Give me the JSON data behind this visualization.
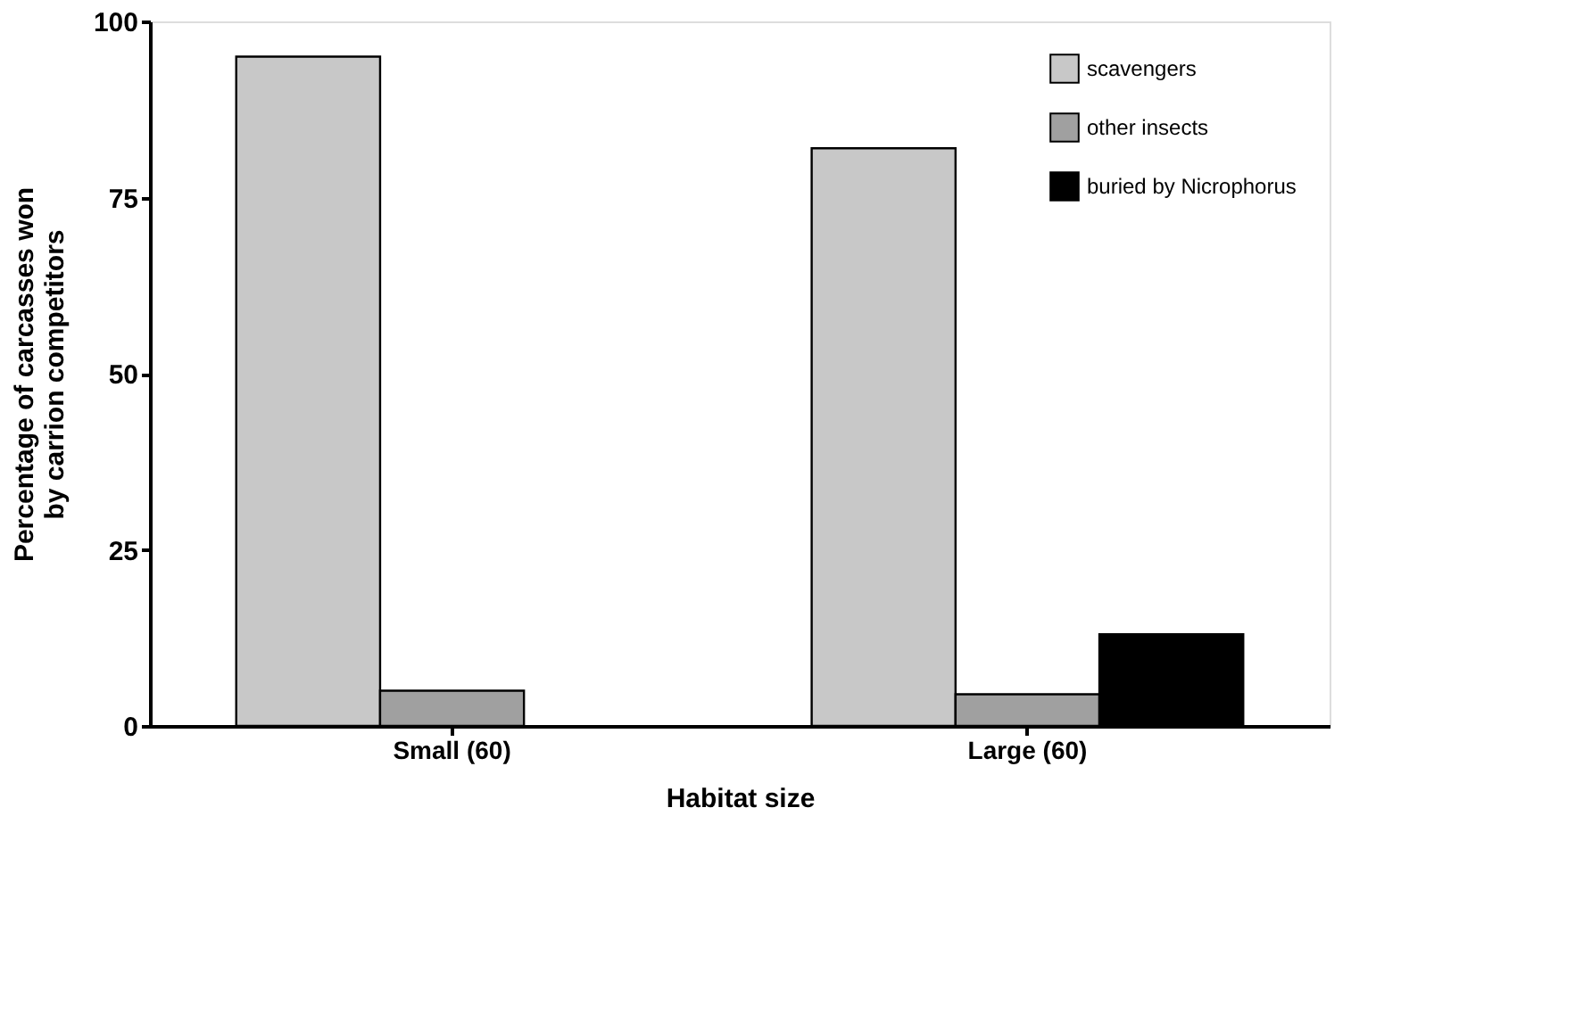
{
  "chart_data": {
    "type": "bar",
    "xlabel": "Habitat size",
    "ylabel": "Percentage of carcasses won by carrion competitors",
    "categories": [
      "Small (60)",
      "Large (60)"
    ],
    "series": [
      {
        "name": "scavengers",
        "color": "#c8c8c8",
        "values": [
          95,
          82
        ]
      },
      {
        "name": "other insects",
        "color": "#a0a0a0",
        "values": [
          5,
          4.5
        ]
      },
      {
        "name": "buried by Nicrophorus",
        "color": "#000000",
        "values": [
          null,
          13
        ]
      }
    ],
    "ylim": [
      0,
      100
    ],
    "yticks": [
      0,
      25,
      50,
      75,
      100
    ],
    "grid": false,
    "legend": "top right"
  }
}
